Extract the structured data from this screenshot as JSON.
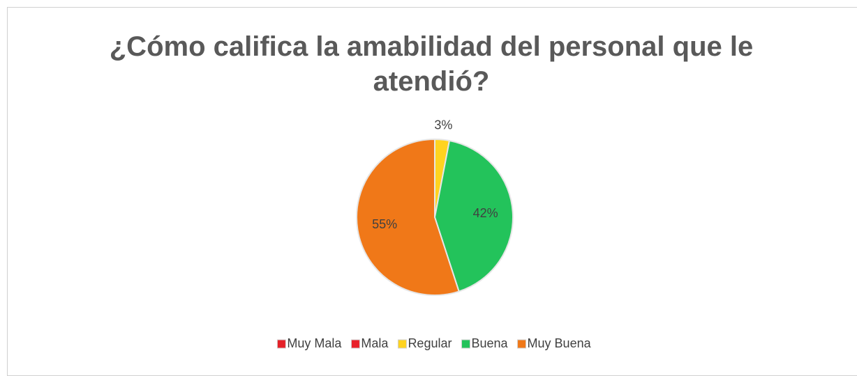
{
  "chart_data": {
    "type": "pie",
    "title": "¿Cómo califica la amabilidad del personal que le atendió?",
    "categories": [
      "Muy Mala",
      "Mala",
      "Regular",
      "Buena",
      "Muy Buena"
    ],
    "values": [
      0,
      0,
      3,
      42,
      55
    ],
    "value_labels": [
      null,
      null,
      "3%",
      "42%",
      "55%"
    ],
    "colors": [
      "#e42128",
      "#e8202a",
      "#ffd320",
      "#23c35b",
      "#f07818"
    ],
    "legend": "bottom"
  }
}
